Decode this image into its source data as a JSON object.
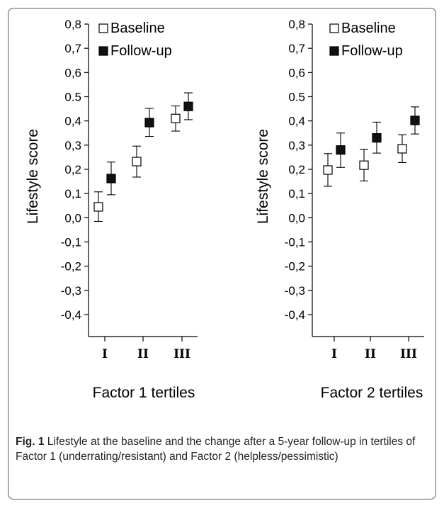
{
  "chart_data": [
    {
      "type": "scatter",
      "xlabel": "Factor 1 tertiles",
      "ylabel": "Lifestyle score",
      "categories": [
        "I",
        "II",
        "III"
      ],
      "ylim": [
        -0.4,
        0.8
      ],
      "yticks": [
        "-0,4",
        "-0,3",
        "-0,2",
        "-0,1",
        "0,0",
        "0,1",
        "0,2",
        "0,3",
        "0,4",
        "0.5",
        "0,6",
        "0,7",
        "0,8"
      ],
      "ytick_values": [
        -0.4,
        -0.3,
        -0.2,
        -0.1,
        0.0,
        0.1,
        0.2,
        0.3,
        0.4,
        0.5,
        0.6,
        0.7,
        0.8
      ],
      "legend_position": "top-left",
      "series": [
        {
          "name": "Baseline",
          "marker": "open-square",
          "values": [
            0.045,
            0.232,
            0.41
          ],
          "error_low": [
            -0.015,
            0.168,
            0.358
          ],
          "error_high": [
            0.107,
            0.296,
            0.462
          ]
        },
        {
          "name": "Follow-up",
          "marker": "filled-square",
          "values": [
            0.162,
            0.393,
            0.46
          ],
          "error_low": [
            0.095,
            0.336,
            0.405
          ],
          "error_high": [
            0.23,
            0.452,
            0.516
          ]
        }
      ]
    },
    {
      "type": "scatter",
      "xlabel": "Factor 2 tertiles",
      "ylabel": "Lifestyle score",
      "categories": [
        "I",
        "II",
        "III"
      ],
      "ylim": [
        -0.4,
        0.8
      ],
      "yticks": [
        "-0,4",
        "-0,3",
        "-0,2",
        "-0,1",
        "0,0",
        "0,1",
        "0,2",
        "0,3",
        "0,4",
        "0.5",
        "0,6",
        "0,7",
        "0,8"
      ],
      "ytick_values": [
        -0.4,
        -0.3,
        -0.2,
        -0.1,
        0.0,
        0.1,
        0.2,
        0.3,
        0.4,
        0.5,
        0.6,
        0.7,
        0.8
      ],
      "legend_position": "top-left",
      "series": [
        {
          "name": "Baseline",
          "marker": "open-square",
          "values": [
            0.197,
            0.217,
            0.285
          ],
          "error_low": [
            0.13,
            0.152,
            0.228
          ],
          "error_high": [
            0.265,
            0.283,
            0.343
          ]
        },
        {
          "name": "Follow-up",
          "marker": "filled-square",
          "values": [
            0.28,
            0.33,
            0.402
          ],
          "error_low": [
            0.208,
            0.267,
            0.346
          ],
          "error_high": [
            0.35,
            0.395,
            0.458
          ]
        }
      ]
    }
  ],
  "caption": {
    "label": "Fig. 1",
    "text": "Lifestyle at the baseline and the change after a 5-year follow-up in tertiles of Factor 1 (underrating/resistant) and Factor 2 (helpless/pessimistic)"
  }
}
